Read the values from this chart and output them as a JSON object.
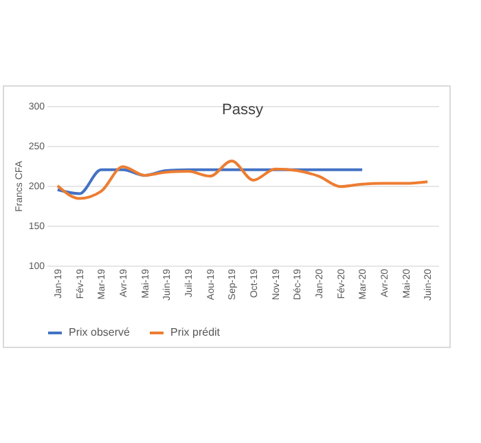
{
  "chart_data": {
    "type": "line",
    "title": "Passy",
    "ylabel": "Francs CFA",
    "categories": [
      "Jan-19",
      "Fév-19",
      "Mar-19",
      "Avr-19",
      "Mai-19",
      "Juin-19",
      "Juil-19",
      "Aou-19",
      "Sep-19",
      "Oct-19",
      "Nov-19",
      "Déc-19",
      "Jan-20",
      "Fév-20",
      "Mar-20",
      "Avr-20",
      "Mai-20",
      "Juin-20"
    ],
    "series": [
      {
        "name": "Prix observé",
        "color": "#4472c4",
        "values": [
          195,
          190,
          220,
          220,
          213,
          219,
          220,
          220,
          220,
          220,
          220,
          220,
          220,
          220,
          220,
          null,
          null,
          null
        ]
      },
      {
        "name": "Prix prédit",
        "color": "#ed7d31",
        "values": [
          200,
          184,
          193,
          224,
          213,
          217,
          218,
          212,
          231,
          207,
          221,
          219,
          212,
          199,
          202,
          203,
          203,
          205
        ]
      }
    ],
    "ylim": [
      100,
      300
    ],
    "yticks": [
      100,
      150,
      200,
      250,
      300
    ],
    "grid": "y",
    "legend": "bottom"
  }
}
